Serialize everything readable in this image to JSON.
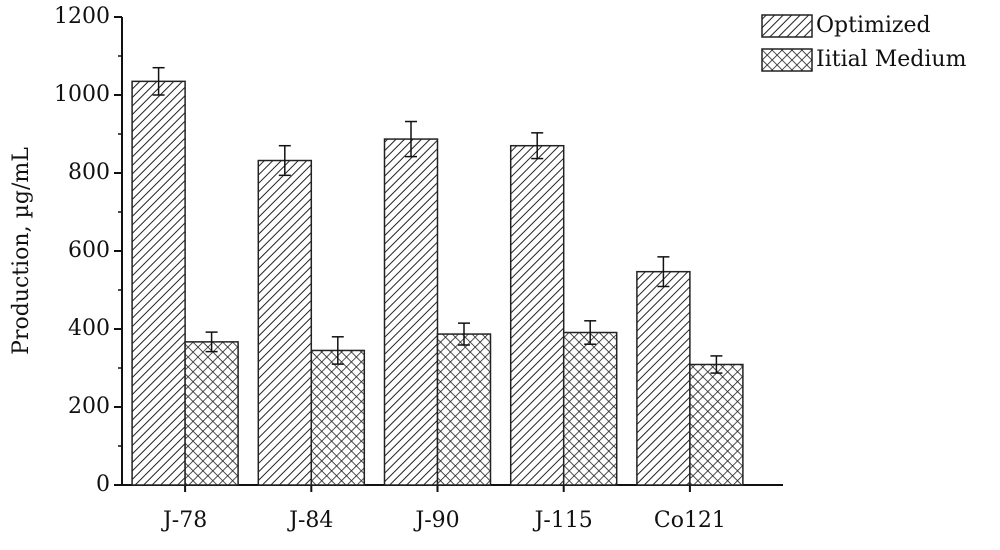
{
  "chart_data": {
    "type": "bar",
    "y_label": "Production, µg/mL",
    "categories": [
      "J-78",
      "J-84",
      "J-90",
      "J-115",
      "Co121"
    ],
    "series": [
      {
        "name": "Optimized",
        "color": "#222222",
        "hatch": "diagonal",
        "values": [
          1035,
          832,
          887,
          870,
          547
        ],
        "errors": [
          35,
          38,
          45,
          33,
          38
        ]
      },
      {
        "name": "Iitial Medium",
        "color": "#222222",
        "hatch": "cross",
        "values": [
          367,
          345,
          387,
          391,
          309
        ],
        "errors": [
          25,
          35,
          28,
          30,
          22
        ]
      }
    ],
    "ylim": [
      0,
      1200
    ],
    "yticks": [
      0,
      200,
      400,
      600,
      800,
      1000,
      1200
    ],
    "legend": "top-right"
  }
}
